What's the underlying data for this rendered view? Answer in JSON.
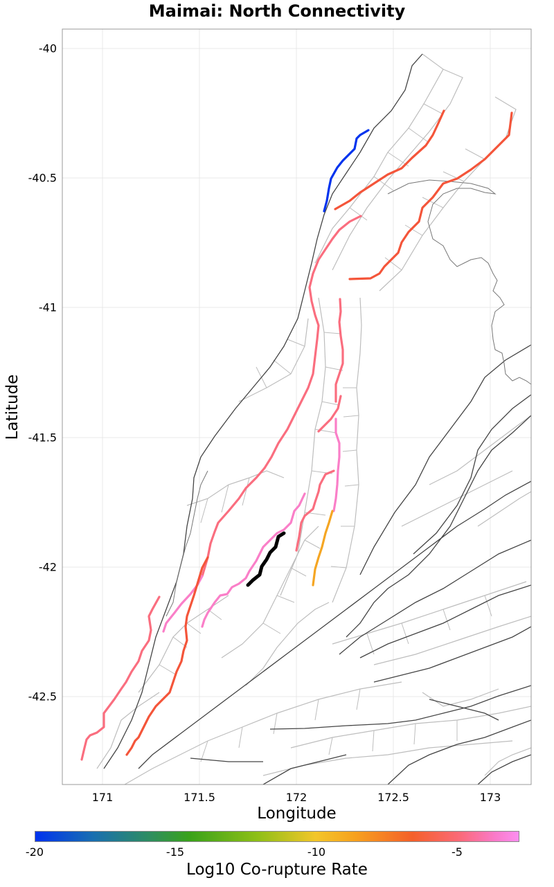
{
  "title": "Maimai: North Connectivity",
  "map": {
    "xlabel": "Longitude",
    "ylabel": "Latitude",
    "x_ticks": [
      "171",
      "171.5",
      "172",
      "172.5",
      "173"
    ],
    "y_ticks": [
      "-40",
      "-40.5",
      "-41",
      "-41.5",
      "-42",
      "-42.5"
    ],
    "x_range": [
      170.8,
      173.2
    ],
    "y_range": [
      -42.85,
      -39.93
    ],
    "grid": true
  },
  "colorbar": {
    "label": "Log10 Co-rupture Rate",
    "ticks": [
      "-20",
      "-15",
      "-10",
      "-5"
    ],
    "range": [
      -20,
      -2.8
    ]
  },
  "colors": {
    "very_low": "#0033ee",
    "mid": "#f5a623",
    "high": "#f4553a",
    "higher": "#fa6e7f",
    "highest": "#fa7fc8",
    "target": "#000000"
  }
}
